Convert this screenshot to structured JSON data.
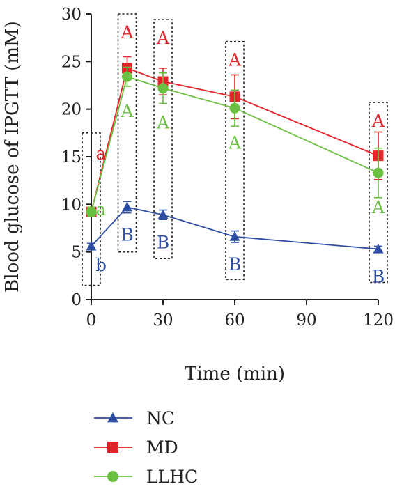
{
  "chart_data": {
    "type": "line",
    "title": "",
    "xlabel": "Time (min)",
    "ylabel": "Blood glucose of IPGTT (mM)",
    "xlim": [
      0,
      120
    ],
    "ylim": [
      0,
      30
    ],
    "x_ticks": [
      0,
      30,
      60,
      90,
      120
    ],
    "x_tick_labels": [
      "0",
      "30",
      "60",
      "90",
      "120"
    ],
    "y_ticks": [
      0,
      5,
      10,
      15,
      20,
      25,
      30
    ],
    "y_tick_labels": [
      "0",
      "5",
      "10",
      "15",
      "20",
      "25",
      "30"
    ],
    "x": [
      0,
      15,
      30,
      60,
      120
    ],
    "grid": false,
    "legend_position": "bottom-left",
    "series": [
      {
        "name": "NC",
        "marker": "triangle",
        "color": "#2e4ea3",
        "values": [
          5.6,
          9.7,
          8.9,
          6.6,
          5.3
        ],
        "errors": [
          0.3,
          0.6,
          0.5,
          0.6,
          0.3
        ]
      },
      {
        "name": "MD",
        "marker": "square",
        "color": "#e3232a",
        "values": [
          9.2,
          24.3,
          22.9,
          21.3,
          15.1
        ],
        "errors": [
          0.5,
          1.2,
          1.4,
          2.3,
          2.5
        ]
      },
      {
        "name": "LLHC",
        "marker": "circle",
        "color": "#6cc041",
        "values": [
          9.2,
          23.4,
          22.2,
          20.1,
          13.3
        ],
        "errors": [
          0.5,
          1.0,
          1.6,
          1.9,
          2.6
        ]
      }
    ],
    "annotations": [
      {
        "x": 0,
        "label_top": "a",
        "label_mid": "a",
        "label_bottom": "b",
        "top": 17.5,
        "bottom": 1.5
      },
      {
        "x": 15,
        "label_top": "A",
        "label_mid": "A",
        "label_bottom": "B",
        "top": 30.0,
        "bottom": 5.0
      },
      {
        "x": 30,
        "label_top": "A",
        "label_mid": "A",
        "label_bottom": "B",
        "top": 29.4,
        "bottom": 4.3
      },
      {
        "x": 60,
        "label_top": "A",
        "label_mid": "A",
        "label_bottom": "B",
        "top": 27.1,
        "bottom": 2.1
      },
      {
        "x": 120,
        "label_top": "A",
        "label_mid": "A",
        "label_bottom": "B",
        "top": 20.7,
        "bottom": 1.8
      }
    ]
  }
}
